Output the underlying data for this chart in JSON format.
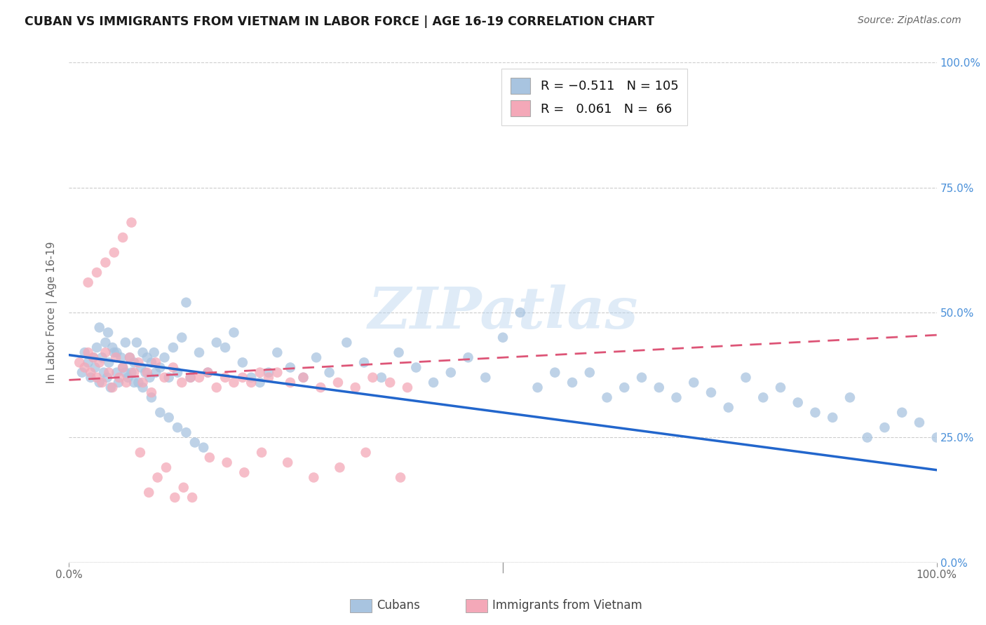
{
  "title": "CUBAN VS IMMIGRANTS FROM VIETNAM IN LABOR FORCE | AGE 16-19 CORRELATION CHART",
  "source": "Source: ZipAtlas.com",
  "ylabel": "In Labor Force | Age 16-19",
  "xlim": [
    0.0,
    1.0
  ],
  "ylim": [
    0.0,
    1.0
  ],
  "watermark": "ZIPatlas",
  "legend_blue_R": "-0.511",
  "legend_blue_N": "105",
  "legend_pink_R": "0.061",
  "legend_pink_N": "66",
  "blue_color": "#a8c4e0",
  "pink_color": "#f4a8b8",
  "blue_line_color": "#2266cc",
  "pink_line_color": "#dd5577",
  "blue_scatter_x": [
    0.015,
    0.018,
    0.022,
    0.025,
    0.028,
    0.03,
    0.032,
    0.035,
    0.038,
    0.04,
    0.042,
    0.044,
    0.046,
    0.048,
    0.05,
    0.052,
    0.055,
    0.057,
    0.06,
    0.062,
    0.065,
    0.068,
    0.07,
    0.072,
    0.075,
    0.078,
    0.08,
    0.083,
    0.085,
    0.088,
    0.09,
    0.093,
    0.095,
    0.098,
    0.1,
    0.105,
    0.11,
    0.115,
    0.12,
    0.125,
    0.13,
    0.135,
    0.14,
    0.15,
    0.16,
    0.17,
    0.18,
    0.19,
    0.2,
    0.21,
    0.22,
    0.23,
    0.24,
    0.255,
    0.27,
    0.285,
    0.3,
    0.32,
    0.34,
    0.36,
    0.38,
    0.4,
    0.42,
    0.44,
    0.46,
    0.48,
    0.5,
    0.52,
    0.54,
    0.56,
    0.58,
    0.6,
    0.62,
    0.64,
    0.66,
    0.68,
    0.7,
    0.72,
    0.74,
    0.76,
    0.78,
    0.8,
    0.82,
    0.84,
    0.86,
    0.88,
    0.9,
    0.92,
    0.94,
    0.96,
    0.98,
    1.0,
    0.035,
    0.045,
    0.055,
    0.065,
    0.075,
    0.085,
    0.095,
    0.105,
    0.115,
    0.125,
    0.135,
    0.145,
    0.155
  ],
  "blue_scatter_y": [
    0.38,
    0.42,
    0.4,
    0.37,
    0.41,
    0.39,
    0.43,
    0.36,
    0.41,
    0.38,
    0.44,
    0.37,
    0.4,
    0.35,
    0.43,
    0.42,
    0.38,
    0.36,
    0.41,
    0.39,
    0.44,
    0.37,
    0.41,
    0.38,
    0.4,
    0.44,
    0.36,
    0.39,
    0.42,
    0.38,
    0.41,
    0.37,
    0.4,
    0.42,
    0.38,
    0.39,
    0.41,
    0.37,
    0.43,
    0.38,
    0.45,
    0.52,
    0.37,
    0.42,
    0.38,
    0.44,
    0.43,
    0.46,
    0.4,
    0.37,
    0.36,
    0.38,
    0.42,
    0.39,
    0.37,
    0.41,
    0.38,
    0.44,
    0.4,
    0.37,
    0.42,
    0.39,
    0.36,
    0.38,
    0.41,
    0.37,
    0.45,
    0.5,
    0.35,
    0.38,
    0.36,
    0.38,
    0.33,
    0.35,
    0.37,
    0.35,
    0.33,
    0.36,
    0.34,
    0.31,
    0.37,
    0.33,
    0.35,
    0.32,
    0.3,
    0.29,
    0.33,
    0.25,
    0.27,
    0.3,
    0.28,
    0.25,
    0.47,
    0.46,
    0.42,
    0.38,
    0.36,
    0.35,
    0.33,
    0.3,
    0.29,
    0.27,
    0.26,
    0.24,
    0.23
  ],
  "pink_scatter_x": [
    0.012,
    0.018,
    0.022,
    0.025,
    0.028,
    0.032,
    0.035,
    0.038,
    0.042,
    0.046,
    0.05,
    0.054,
    0.058,
    0.062,
    0.066,
    0.07,
    0.075,
    0.08,
    0.085,
    0.09,
    0.095,
    0.1,
    0.11,
    0.12,
    0.13,
    0.14,
    0.15,
    0.16,
    0.17,
    0.18,
    0.19,
    0.2,
    0.21,
    0.22,
    0.23,
    0.24,
    0.255,
    0.27,
    0.29,
    0.31,
    0.33,
    0.35,
    0.37,
    0.39,
    0.022,
    0.032,
    0.042,
    0.052,
    0.062,
    0.072,
    0.082,
    0.092,
    0.102,
    0.112,
    0.122,
    0.132,
    0.142,
    0.162,
    0.182,
    0.202,
    0.222,
    0.252,
    0.282,
    0.312,
    0.342,
    0.382
  ],
  "pink_scatter_y": [
    0.4,
    0.39,
    0.42,
    0.38,
    0.41,
    0.37,
    0.4,
    0.36,
    0.42,
    0.38,
    0.35,
    0.41,
    0.37,
    0.39,
    0.36,
    0.41,
    0.38,
    0.4,
    0.36,
    0.38,
    0.34,
    0.4,
    0.37,
    0.39,
    0.36,
    0.37,
    0.37,
    0.38,
    0.35,
    0.37,
    0.36,
    0.37,
    0.36,
    0.38,
    0.37,
    0.38,
    0.36,
    0.37,
    0.35,
    0.36,
    0.35,
    0.37,
    0.36,
    0.35,
    0.56,
    0.58,
    0.6,
    0.62,
    0.65,
    0.68,
    0.22,
    0.14,
    0.17,
    0.19,
    0.13,
    0.15,
    0.13,
    0.21,
    0.2,
    0.18,
    0.22,
    0.2,
    0.17,
    0.19,
    0.22,
    0.17
  ],
  "blue_trend_x0": 0.0,
  "blue_trend_y0": 0.415,
  "blue_trend_x1": 1.0,
  "blue_trend_y1": 0.185,
  "pink_trend_x0": 0.0,
  "pink_trend_y0": 0.365,
  "pink_trend_x1": 1.0,
  "pink_trend_y1": 0.455,
  "grid_color": "#cccccc",
  "background_color": "#ffffff",
  "blue_tick_color": "#4a90d9",
  "axis_label_color": "#666666"
}
